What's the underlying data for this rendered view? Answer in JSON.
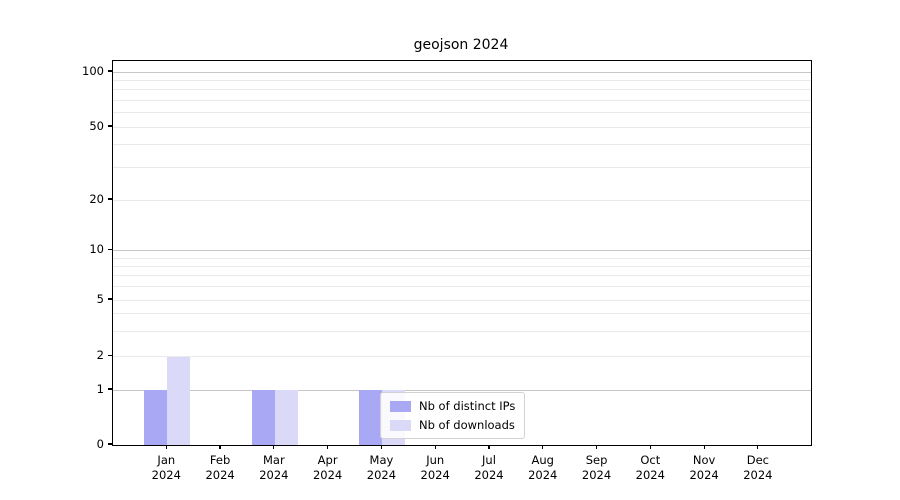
{
  "title": "geojson 2024",
  "chart_data": {
    "type": "bar",
    "title": "geojson 2024",
    "categories": [
      "Jan",
      "Feb",
      "Mar",
      "Apr",
      "May",
      "Jun",
      "Jul",
      "Aug",
      "Sep",
      "Oct",
      "Nov",
      "Dec"
    ],
    "category_year": "2024",
    "series": [
      {
        "name": "Nb of distinct IPs",
        "color": "#a8a8f4",
        "values": [
          1,
          0,
          1,
          0,
          1,
          0,
          0,
          0,
          0,
          0,
          0,
          0
        ]
      },
      {
        "name": "Nb of downloads",
        "color": "#dadaf8",
        "values": [
          2,
          0,
          1,
          0,
          1,
          0,
          0,
          0,
          0,
          0,
          0,
          0
        ]
      }
    ],
    "yscale": "symlog",
    "ylim": [
      0,
      115
    ],
    "yticks": [
      0,
      1,
      2,
      5,
      10,
      20,
      50,
      100
    ],
    "major_gridlines": [
      1,
      10,
      100
    ],
    "minor_gridlines": [
      3,
      4,
      6,
      7,
      8,
      9,
      30,
      40,
      60,
      70,
      80,
      90
    ],
    "grid": true,
    "legend_position": "lower-center-inside",
    "colors": {
      "major_grid": "#c6c6c6",
      "minor_grid": "#eaeaea",
      "axis": "#000000",
      "text": "#000000",
      "legend_border": "#d2d2d2",
      "background": "#ffffff"
    }
  }
}
